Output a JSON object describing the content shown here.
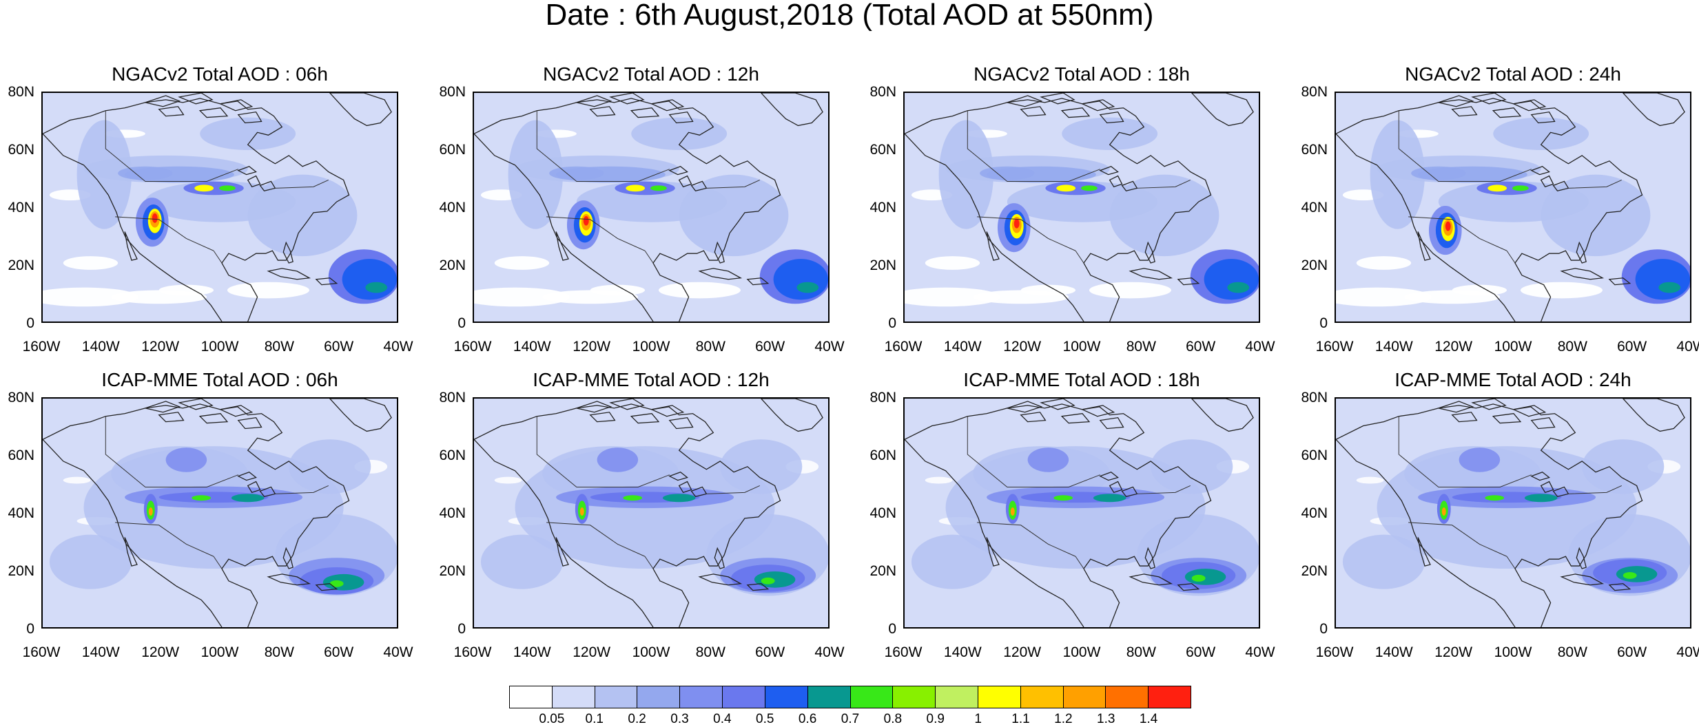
{
  "title": "Date : 6th August,2018 (Total AOD at 550nm)",
  "panels": [
    {
      "title": "NGACv2 Total AOD : 06h",
      "model": "NGAC"
    },
    {
      "title": "NGACv2 Total AOD : 12h",
      "model": "NGAC"
    },
    {
      "title": "NGACv2 Total AOD : 18h",
      "model": "NGAC"
    },
    {
      "title": "NGACv2 Total AOD : 24h",
      "model": "NGAC"
    },
    {
      "title": "ICAP-MME Total AOD : 06h",
      "model": "ICAP"
    },
    {
      "title": "ICAP-MME Total AOD : 12h",
      "model": "ICAP"
    },
    {
      "title": "ICAP-MME Total AOD : 18h",
      "model": "ICAP"
    },
    {
      "title": "ICAP-MME Total AOD : 24h",
      "model": "ICAP"
    }
  ],
  "y_ticks": [
    "80N",
    "60N",
    "40N",
    "20N",
    "0"
  ],
  "x_ticks": [
    "160W",
    "140W",
    "120W",
    "100W",
    "80W",
    "60W",
    "40W"
  ],
  "lat_range": [
    0,
    80
  ],
  "lon_range": [
    -160,
    -40
  ],
  "colorbar": {
    "labels": [
      "0.05",
      "0.1",
      "0.2",
      "0.3",
      "0.4",
      "0.5",
      "0.6",
      "0.7",
      "0.8",
      "0.9",
      "1",
      "1.1",
      "1.2",
      "1.3",
      "1.4"
    ],
    "colors": [
      "#ffffff",
      "#d4dcf8",
      "#b4c2f2",
      "#94a8ee",
      "#7f8ff0",
      "#6a78ee",
      "#1e5ef0",
      "#089890",
      "#38e818",
      "#88f000",
      "#c0f060",
      "#ffff00",
      "#ffc000",
      "#ffa000",
      "#ff7000",
      "#ff2010"
    ]
  }
}
